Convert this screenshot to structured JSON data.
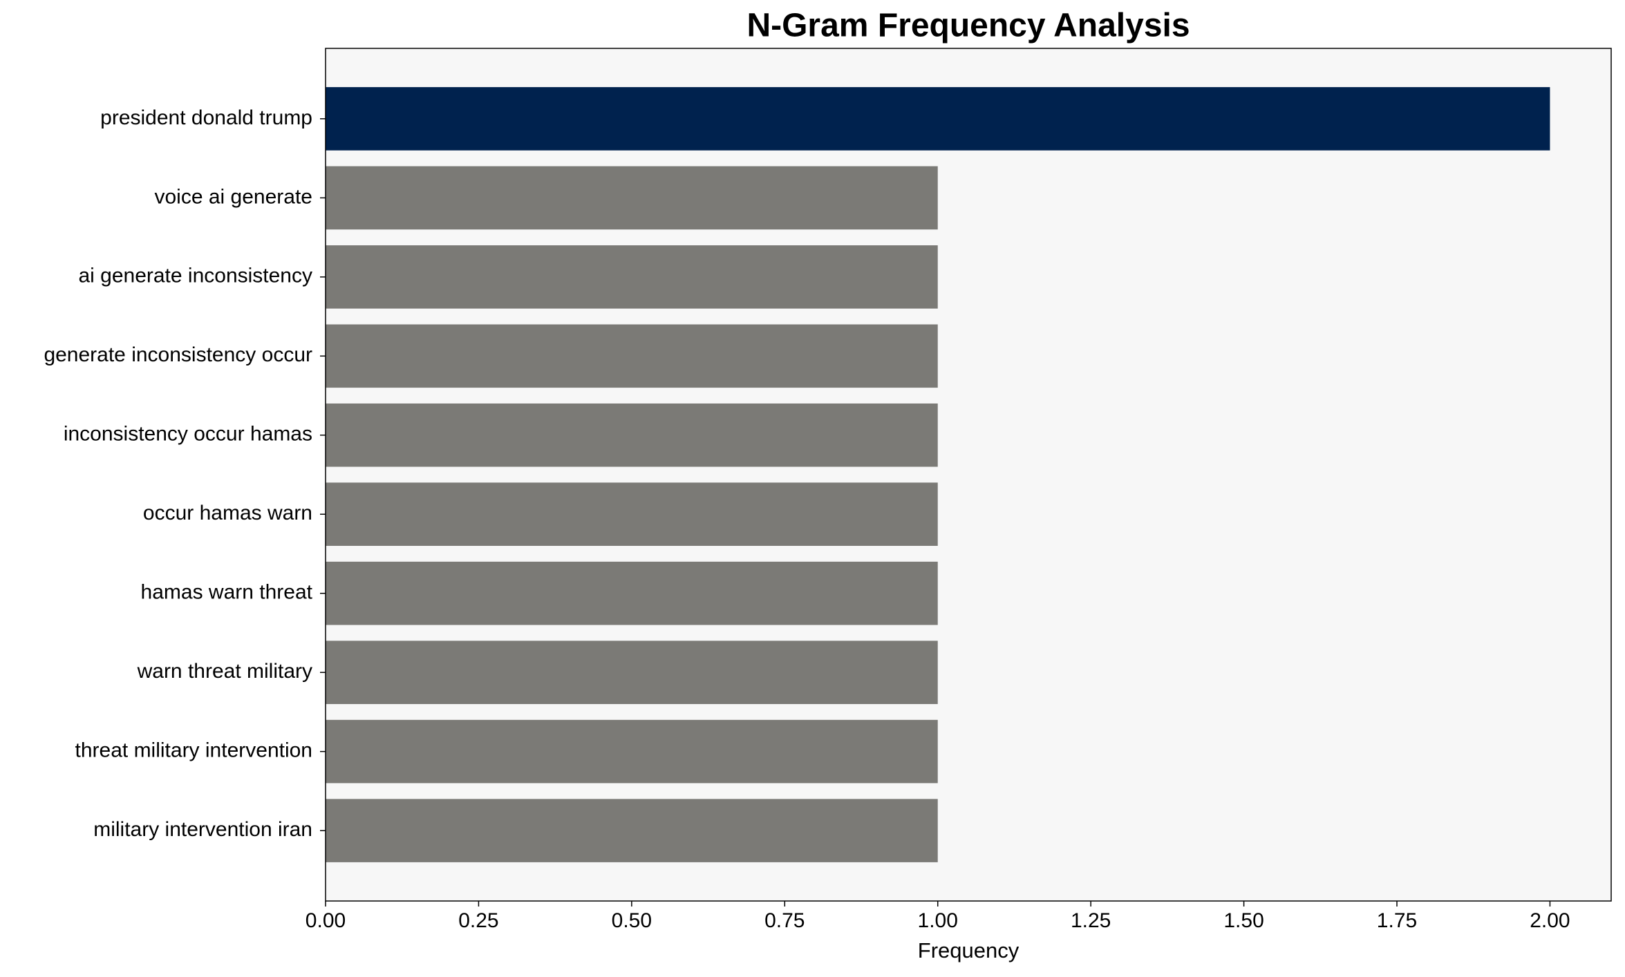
{
  "chart_data": {
    "type": "barh",
    "title": "N-Gram Frequency Analysis",
    "x_label": "Frequency",
    "categories": [
      "president donald trump",
      "voice ai generate",
      "ai generate inconsistency",
      "generate inconsistency occur",
      "inconsistency occur hamas",
      "occur hamas warn",
      "hamas warn threat",
      "warn threat military",
      "threat military intervention",
      "military intervention iran"
    ],
    "values": [
      2,
      1,
      1,
      1,
      1,
      1,
      1,
      1,
      1,
      1
    ],
    "colors": [
      "#00224e",
      "#7b7a76",
      "#7b7a76",
      "#7b7a76",
      "#7b7a76",
      "#7b7a76",
      "#7b7a76",
      "#7b7a76",
      "#7b7a76",
      "#7b7a76"
    ],
    "xlim": [
      0,
      2.1
    ],
    "xticks": [
      {
        "value": 0,
        "label": "0.00"
      },
      {
        "value": 0.25,
        "label": "0.25"
      },
      {
        "value": 0.5,
        "label": "0.50"
      },
      {
        "value": 0.75,
        "label": "0.75"
      },
      {
        "value": 1,
        "label": "1.00"
      },
      {
        "value": 1.25,
        "label": "1.25"
      },
      {
        "value": 1.5,
        "label": "1.50"
      },
      {
        "value": 1.75,
        "label": "1.75"
      },
      {
        "value": 2,
        "label": "2.00"
      }
    ],
    "grid": false,
    "plot_background": "#f7f7f7"
  }
}
